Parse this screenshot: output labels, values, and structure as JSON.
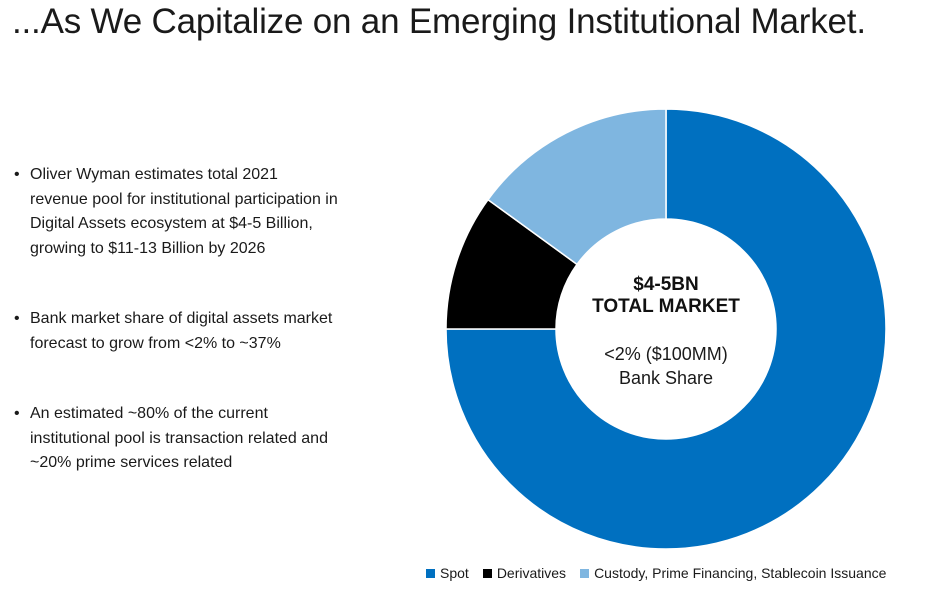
{
  "title": "...As We Capitalize on an Emerging Institutional Market.",
  "bullets": [
    "Oliver Wyman estimates total 2021 revenue pool for institutional participation in Digital Assets ecosystem at $4-5 Billion, growing to $11-13 Billion by 2026",
    "Bank market share of digital assets market forecast to grow from <2% to ~37%",
    "An estimated ~80% of the current institutional pool is transaction related and ~20% prime services related"
  ],
  "chart_data": {
    "type": "pie",
    "variant": "donut",
    "categories": [
      "Spot",
      "Derivatives",
      "Custody, Prime Financing, Stablecoin Issuance"
    ],
    "values": [
      75,
      10,
      15
    ],
    "colors": [
      "#0070c0",
      "#000000",
      "#7fb6e0"
    ],
    "center_labels": {
      "line1": "$4-5BN",
      "line2": "TOTAL MARKET",
      "line3": "<2% ($100MM)",
      "line4": "Bank Share"
    },
    "legend_position": "bottom"
  }
}
